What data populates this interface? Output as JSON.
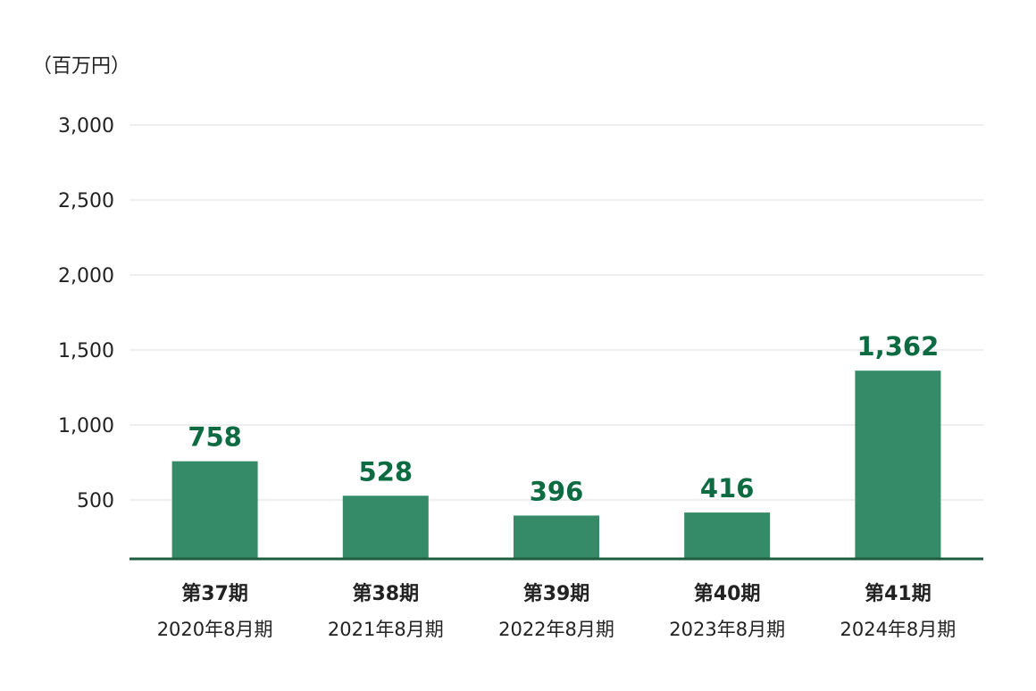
{
  "unit_label": "（百万円）",
  "chart_data": {
    "type": "bar",
    "categories": [
      "第37期",
      "第38期",
      "第39期",
      "第40期",
      "第41期"
    ],
    "sublabels": [
      "2020年8月期",
      "2021年8月期",
      "2022年8月期",
      "2023年8月期",
      "2024年8月期"
    ],
    "values": [
      758,
      528,
      396,
      416,
      1362
    ],
    "value_labels": [
      "758",
      "528",
      "396",
      "416",
      "1,362"
    ],
    "ylim": [
      0,
      3000
    ],
    "yticks": [
      500,
      1000,
      1500,
      2000,
      2500,
      3000
    ],
    "ytick_labels": [
      "500",
      "1,000",
      "1,500",
      "2,000",
      "2,500",
      "3,000"
    ],
    "grid": true,
    "bar_color": "#358a67",
    "label_color": "#0d6b42",
    "axis_color": "#1e5c3f"
  }
}
